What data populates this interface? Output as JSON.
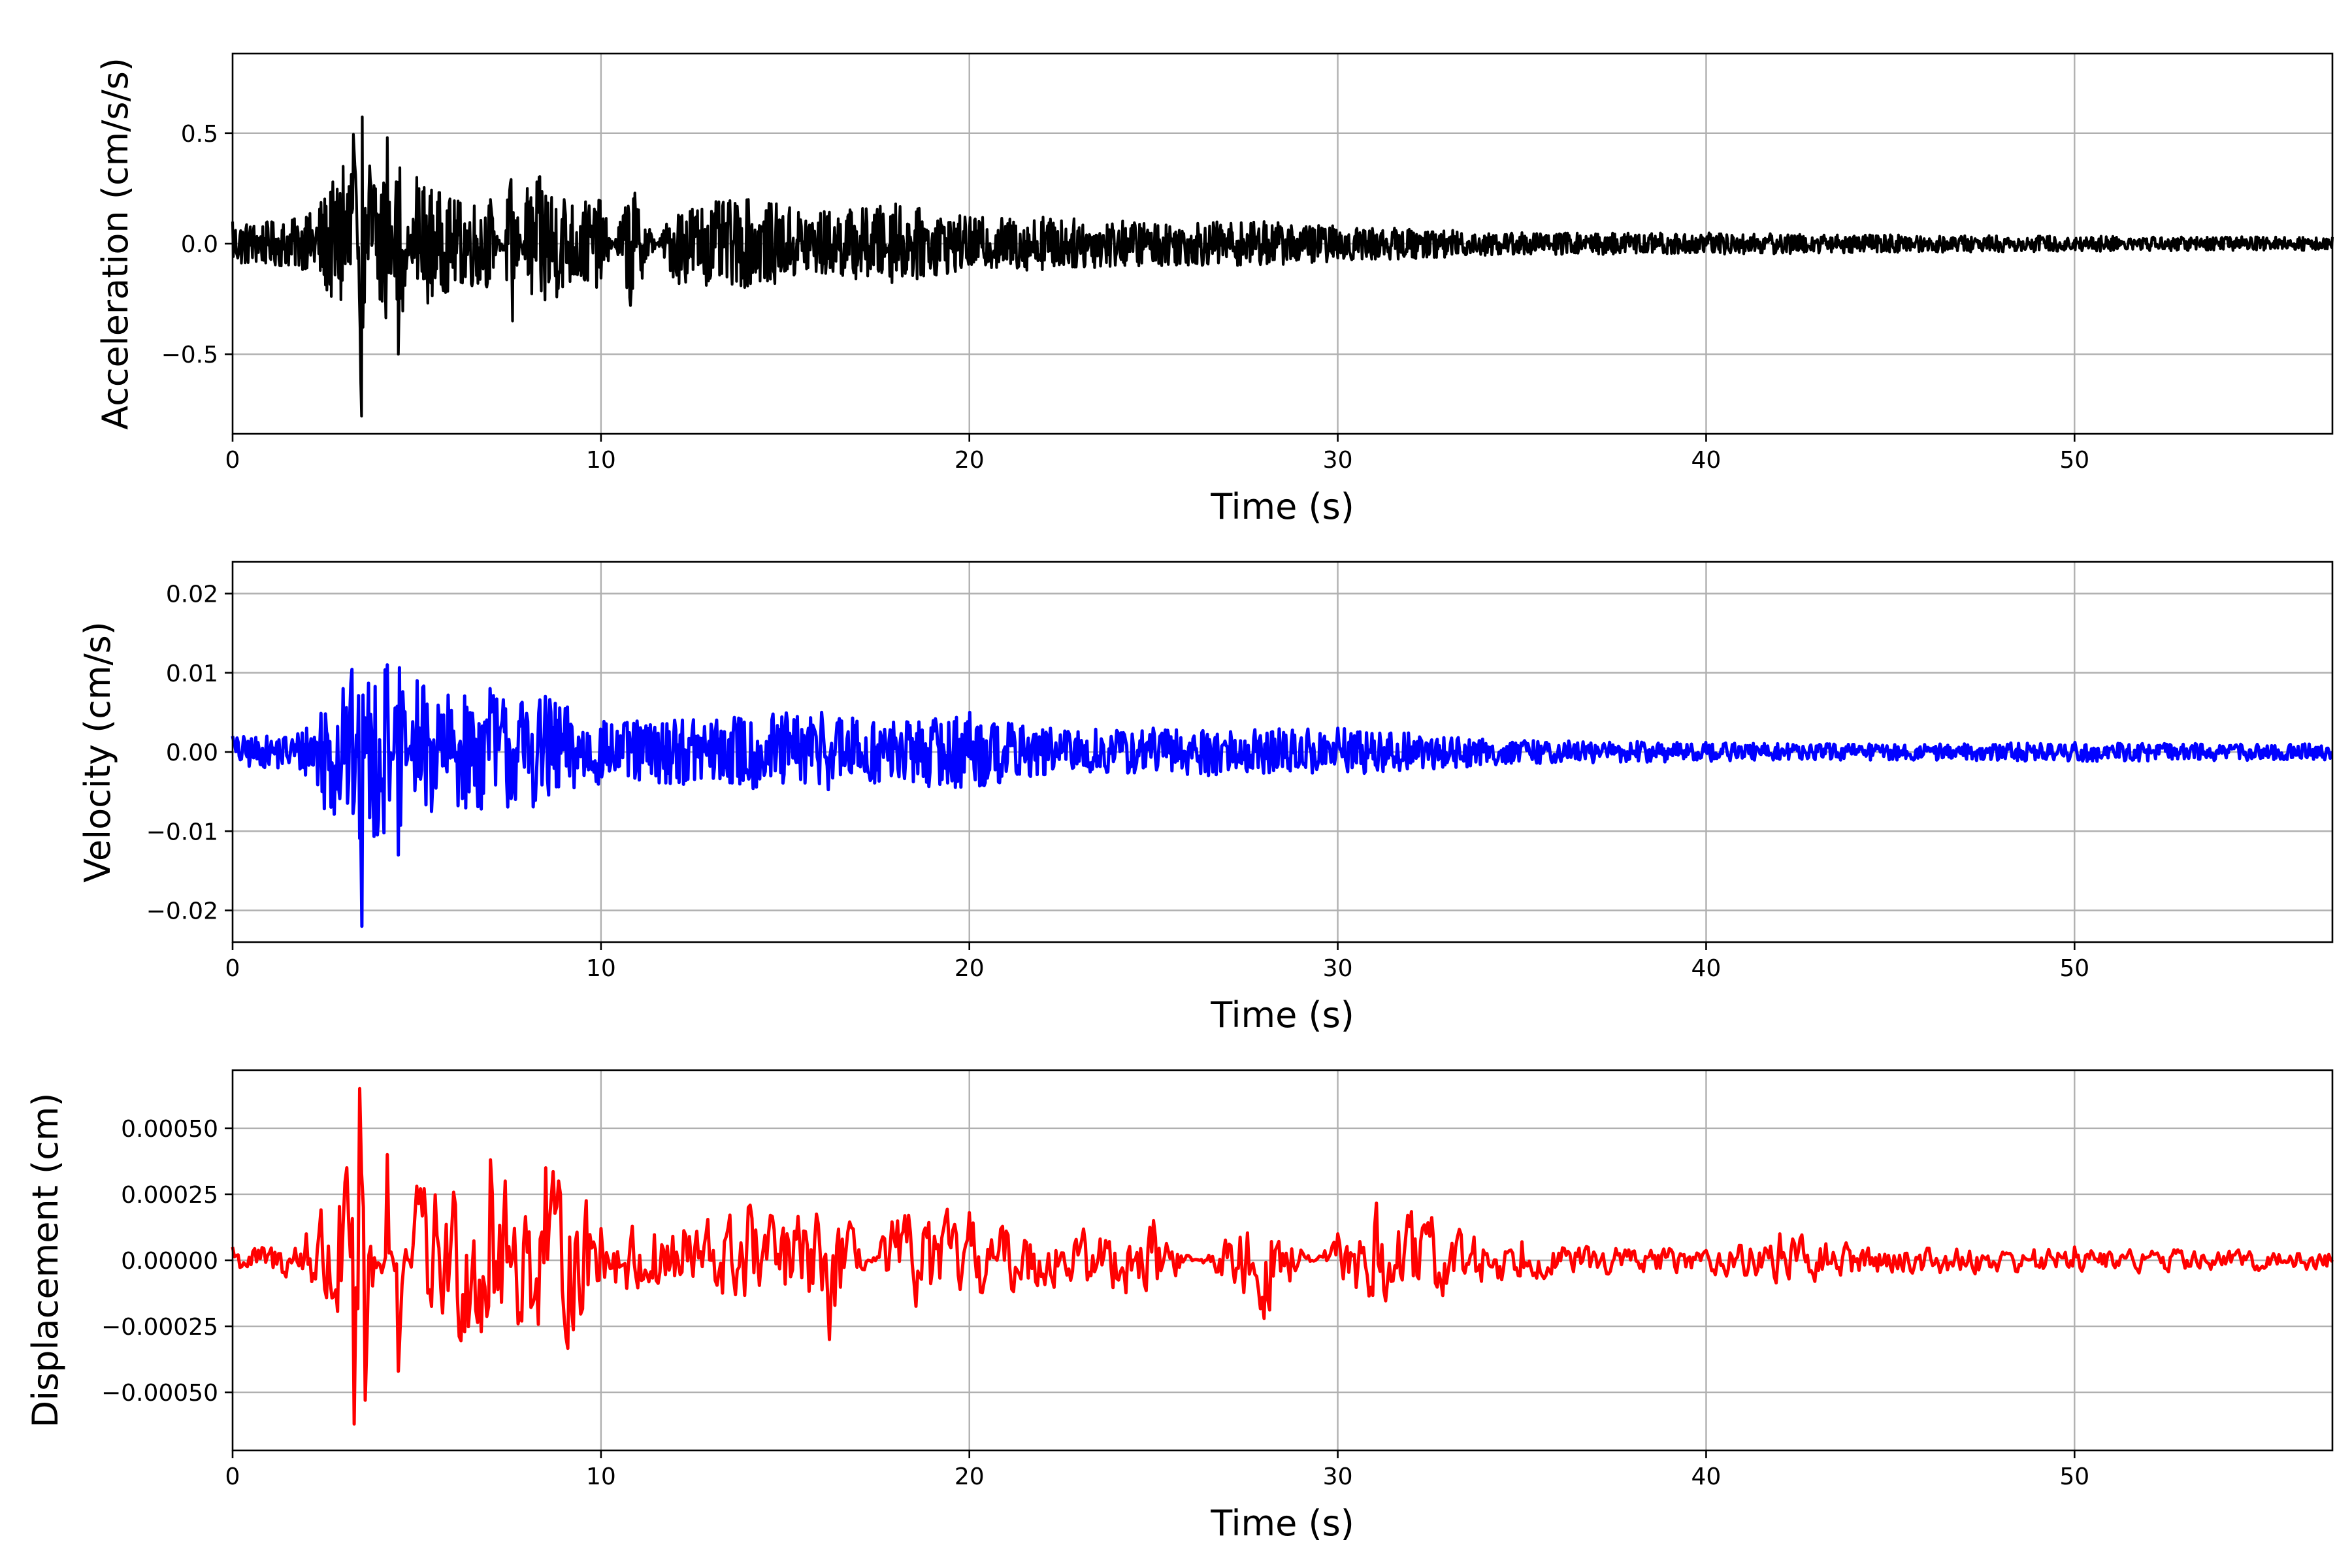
{
  "chart_data": [
    {
      "type": "line",
      "xlabel": "Time (s)",
      "ylabel": "Acceleration (cm/s/s)",
      "xlim": [
        0,
        57
      ],
      "ylim": [
        -0.86,
        0.86
      ],
      "xticks": [
        0,
        10,
        20,
        30,
        40,
        50
      ],
      "xtick_labels": [
        "0",
        "10",
        "20",
        "30",
        "40",
        "50"
      ],
      "yticks": [
        -0.5,
        0.0,
        0.5
      ],
      "ytick_labels": [
        "−0.5",
        "0.0",
        "0.5"
      ],
      "grid": true,
      "color": "#000000",
      "series": [
        {
          "x": [
            0,
            1,
            2,
            2.6,
            3.0,
            3.3,
            3.5,
            3.7,
            4.2,
            4.5,
            5,
            6,
            7,
            7.6,
            8,
            8.5,
            9,
            10,
            10.8,
            12,
            14,
            16,
            18,
            20,
            22,
            25,
            28,
            30,
            35,
            40,
            45,
            50,
            57
          ],
          "envelope": [
            0.1,
            0.1,
            0.12,
            0.25,
            0.35,
            0.64,
            -0.78,
            0.42,
            0.48,
            -0.5,
            0.3,
            0.2,
            0.2,
            -0.35,
            0.25,
            0.33,
            0.2,
            0.2,
            -0.28,
            0.18,
            0.2,
            0.15,
            0.18,
            0.12,
            0.12,
            0.1,
            0.1,
            0.08,
            0.05,
            0.05,
            0.04,
            0.035,
            0.03
          ]
        }
      ]
    },
    {
      "type": "line",
      "xlabel": "Time (s)",
      "ylabel": "Velocity (cm/s)",
      "xlim": [
        0,
        57
      ],
      "ylim": [
        -0.024,
        0.024
      ],
      "xticks": [
        0,
        10,
        20,
        30,
        40,
        50
      ],
      "xtick_labels": [
        "0",
        "10",
        "20",
        "30",
        "40",
        "50"
      ],
      "yticks": [
        -0.02,
        -0.01,
        0.0,
        0.01,
        0.02
      ],
      "ytick_labels": [
        "−0.02",
        "−0.01",
        "0.00",
        "0.01",
        "0.02"
      ],
      "grid": true,
      "color": "#0000ff",
      "series": [
        {
          "x": [
            0,
            1,
            2,
            2.6,
            3.0,
            3.3,
            3.5,
            3.7,
            4.2,
            4.5,
            5,
            6,
            7,
            8,
            8.5,
            10,
            12,
            14,
            16,
            18,
            20,
            22,
            25,
            28,
            30,
            35,
            40,
            45,
            50,
            57
          ],
          "envelope": [
            0.002,
            0.002,
            0.003,
            0.009,
            0.008,
            0.0125,
            -0.022,
            0.012,
            0.011,
            -0.013,
            0.009,
            0.007,
            0.008,
            0.007,
            0.007,
            0.004,
            0.004,
            0.005,
            0.005,
            0.004,
            0.005,
            0.003,
            0.003,
            0.003,
            0.003,
            0.0015,
            0.0012,
            0.001,
            0.0012,
            0.001
          ]
        }
      ]
    },
    {
      "type": "line",
      "xlabel": "Time (s)",
      "ylabel": "Displacement (cm)",
      "xlim": [
        0,
        57
      ],
      "ylim": [
        -0.00072,
        0.00072
      ],
      "xticks": [
        0,
        10,
        20,
        30,
        40,
        50
      ],
      "xtick_labels": [
        "0",
        "10",
        "20",
        "30",
        "40",
        "50"
      ],
      "yticks": [
        -0.0005,
        -0.00025,
        0.0,
        0.00025,
        0.0005
      ],
      "ytick_labels": [
        "−0.00050",
        "−0.00025",
        "0.00000",
        "0.00025",
        "0.00050"
      ],
      "grid": true,
      "color": "#ff0000",
      "series": [
        {
          "x": [
            0,
            1,
            2,
            2.7,
            3.1,
            3.3,
            3.45,
            3.6,
            4.2,
            4.5,
            5,
            6,
            7,
            8,
            8.5,
            9.5,
            10,
            12,
            14,
            16,
            16.2,
            18,
            20,
            22,
            25,
            28,
            30,
            31,
            35,
            40,
            42,
            45,
            50,
            57
          ],
          "envelope": [
            5e-05,
            7e-05,
            0.0001,
            0.00038,
            0.00035,
            -0.00062,
            0.00065,
            -0.00053,
            0.0004,
            -0.00042,
            0.00028,
            0.00035,
            0.00038,
            0.0003,
            0.00035,
            0.0003,
            0.00012,
            0.00018,
            0.0002,
            0.0002,
            -0.0003,
            0.0002,
            0.00018,
            0.00012,
            0.00015,
            -0.00022,
            0.0001,
            0.00024,
            7e-05,
            5e-05,
            0.0001,
            6e-05,
            5e-05,
            4e-05
          ]
        }
      ]
    }
  ]
}
